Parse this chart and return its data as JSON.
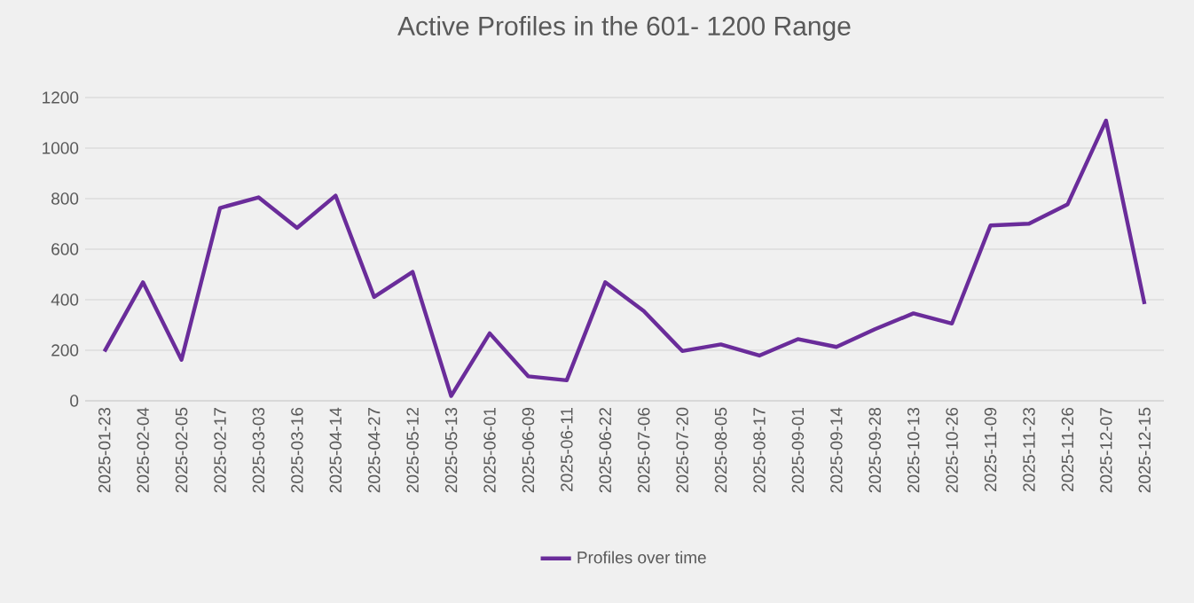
{
  "chart_data": {
    "type": "line",
    "title": "Active Profiles in the 601- 1200 Range",
    "categories": [
      "2025-01-23",
      "2025-02-04",
      "2025-02-05",
      "2025-02-17",
      "2025-03-03",
      "2025-03-16",
      "2025-04-14",
      "2025-04-27",
      "2025-05-12",
      "2025-05-13",
      "2025-06-01",
      "2025-06-09",
      "2025-06-11",
      "2025-06-22",
      "2025-07-06",
      "2025-07-20",
      "2025-08-05",
      "2025-08-17",
      "2025-09-01",
      "2025-09-14",
      "2025-09-28",
      "2025-10-13",
      "2025-10-26",
      "2025-11-09",
      "2025-11-23",
      "2025-11-26",
      "2025-12-07",
      "2025-12-15"
    ],
    "series": [
      {
        "name": "Profiles over time",
        "color": "#6a2c9a",
        "values": [
          195,
          469,
          162,
          763,
          805,
          684,
          812,
          411,
          510,
          19,
          267,
          97,
          81,
          469,
          355,
          197,
          223,
          179,
          244,
          213,
          283,
          346,
          306,
          694,
          701,
          777,
          1109,
          383
        ]
      }
    ],
    "ylim": [
      0,
      1200
    ],
    "yticks": [
      0,
      200,
      400,
      600,
      800,
      1000,
      1200
    ],
    "grid": "y",
    "legend": "bottom"
  }
}
